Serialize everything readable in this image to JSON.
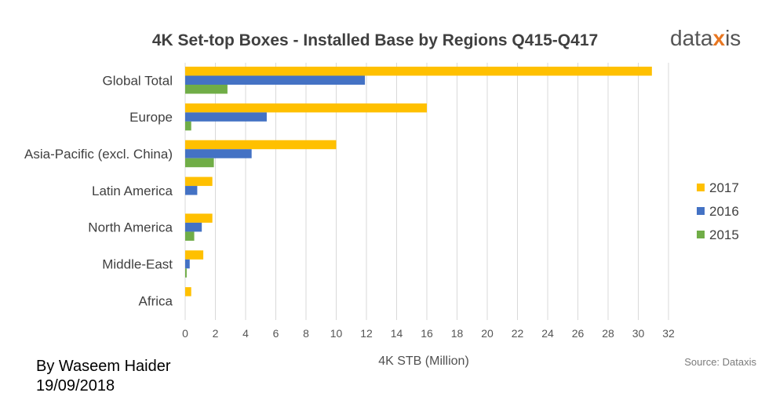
{
  "chart_data": {
    "type": "bar",
    "orientation": "horizontal",
    "title": "4K Set-top Boxes - Installed Base by Regions Q415-Q417",
    "xlabel": "4K STB (Million)",
    "ylabel": "",
    "xlim": [
      0,
      32
    ],
    "x_ticks": [
      0,
      2,
      4,
      6,
      8,
      10,
      12,
      14,
      16,
      18,
      20,
      22,
      24,
      26,
      28,
      30,
      32
    ],
    "grid": "vertical",
    "legend_position": "right",
    "categories": [
      "Global Total",
      "Europe",
      "Asia-Pacific (excl. China)",
      "Latin America",
      "North America",
      "Middle-East",
      "Africa"
    ],
    "series": [
      {
        "name": "2017",
        "color": "#FFC000",
        "values": [
          30.9,
          16.0,
          10.0,
          1.8,
          1.8,
          1.2,
          0.4
        ]
      },
      {
        "name": "2016",
        "color": "#4472C4",
        "values": [
          11.9,
          5.4,
          4.4,
          0.8,
          1.1,
          0.3,
          0.0
        ]
      },
      {
        "name": "2015",
        "color": "#70AD47",
        "values": [
          2.8,
          0.4,
          1.9,
          0.0,
          0.6,
          0.1,
          0.0
        ]
      }
    ],
    "legend_order": [
      "2017",
      "2016",
      "2015"
    ],
    "source": "Source: Dataxis"
  },
  "brand": {
    "logo_text_left": "data",
    "logo_x": "x",
    "logo_text_right": "is",
    "logo_accent_color": "#E87722"
  },
  "author": {
    "line1": "By Waseem Haider",
    "line2": "19/09/2018"
  }
}
